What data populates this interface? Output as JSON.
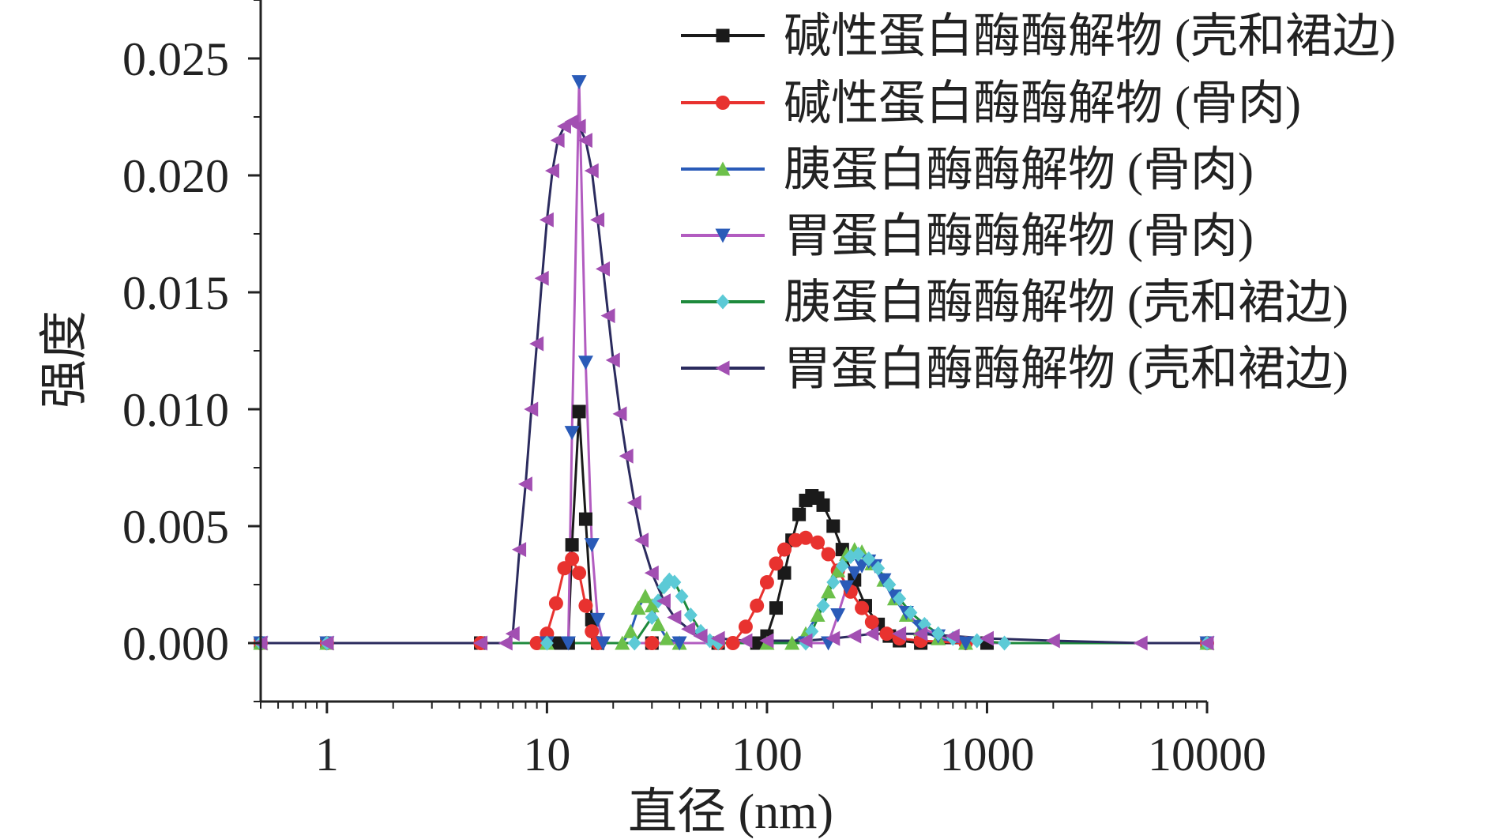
{
  "chart_data": {
    "type": "line",
    "x_scale": "log",
    "xlim": [
      0.5,
      10000
    ],
    "ylim": [
      -0.0025,
      0.0275
    ],
    "x_ticks": [
      1,
      10,
      100,
      1000,
      10000
    ],
    "x_tick_labels": [
      "1",
      "10",
      "100",
      "1000",
      "10000"
    ],
    "y_ticks": [
      0,
      0.005,
      0.01,
      0.015,
      0.02,
      0.025
    ],
    "y_tick_labels": [
      "0.000",
      "0.005",
      "0.010",
      "0.015",
      "0.020",
      "0.025"
    ],
    "xlabel": "直径 (nm)",
    "ylabel": "强度",
    "legend_position": "top-right",
    "grid": false,
    "series": [
      {
        "name": "碱性蛋白酶酶解物 (壳和裙边)",
        "color": "#1a1a1a",
        "marker": "square",
        "points": [
          [
            0.5,
            0
          ],
          [
            1,
            0
          ],
          [
            5,
            0
          ],
          [
            11,
            0
          ],
          [
            12.5,
            0
          ],
          [
            13,
            0.0042
          ],
          [
            14,
            0.0099
          ],
          [
            15,
            0.0053
          ],
          [
            16,
            0.001
          ],
          [
            17,
            0
          ],
          [
            30,
            0
          ],
          [
            60,
            0
          ],
          [
            90,
            0
          ],
          [
            100,
            0.0003
          ],
          [
            110,
            0.0015
          ],
          [
            120,
            0.003
          ],
          [
            130,
            0.0044
          ],
          [
            140,
            0.0055
          ],
          [
            150,
            0.0061
          ],
          [
            160,
            0.0063
          ],
          [
            170,
            0.0062
          ],
          [
            180,
            0.0059
          ],
          [
            200,
            0.005
          ],
          [
            220,
            0.004
          ],
          [
            250,
            0.0027
          ],
          [
            280,
            0.0016
          ],
          [
            320,
            0.0008
          ],
          [
            360,
            0.0003
          ],
          [
            400,
            0.0001
          ],
          [
            500,
            0
          ],
          [
            1000,
            0
          ],
          [
            10000,
            0
          ]
        ]
      },
      {
        "name": "碱性蛋白酶酶解物 (骨肉)",
        "color": "#e8322f",
        "marker": "circle",
        "points": [
          [
            0.5,
            0
          ],
          [
            1,
            0
          ],
          [
            5,
            0
          ],
          [
            9,
            0
          ],
          [
            10,
            0.0004
          ],
          [
            11,
            0.0017
          ],
          [
            12,
            0.0032
          ],
          [
            13,
            0.0036
          ],
          [
            14,
            0.003
          ],
          [
            15,
            0.0016
          ],
          [
            16,
            0.0005
          ],
          [
            17,
            0
          ],
          [
            30,
            0
          ],
          [
            60,
            0
          ],
          [
            70,
            0
          ],
          [
            80,
            0.0007
          ],
          [
            90,
            0.0016
          ],
          [
            100,
            0.0026
          ],
          [
            110,
            0.0034
          ],
          [
            120,
            0.004
          ],
          [
            135,
            0.0044
          ],
          [
            150,
            0.0045
          ],
          [
            170,
            0.0043
          ],
          [
            190,
            0.0038
          ],
          [
            210,
            0.0031
          ],
          [
            240,
            0.0022
          ],
          [
            270,
            0.0015
          ],
          [
            300,
            0.0009
          ],
          [
            350,
            0.0004
          ],
          [
            400,
            0.0002
          ],
          [
            500,
            0.0001
          ],
          [
            800,
            0
          ],
          [
            10000,
            0
          ]
        ]
      },
      {
        "name": "胰蛋白酶酶解物 (骨肉)",
        "color": "#6cc04a",
        "line_color": "#2a5bb8",
        "marker": "triangle-up",
        "points": [
          [
            0.5,
            0
          ],
          [
            1,
            0
          ],
          [
            10,
            0
          ],
          [
            22,
            0
          ],
          [
            24,
            0.0005
          ],
          [
            26,
            0.0015
          ],
          [
            28,
            0.002
          ],
          [
            30,
            0.0016
          ],
          [
            32,
            0.0008
          ],
          [
            35,
            0.0002
          ],
          [
            40,
            0
          ],
          [
            100,
            0
          ],
          [
            130,
            0
          ],
          [
            150,
            0.0004
          ],
          [
            170,
            0.0012
          ],
          [
            190,
            0.0022
          ],
          [
            210,
            0.0031
          ],
          [
            230,
            0.0038
          ],
          [
            250,
            0.004
          ],
          [
            270,
            0.0039
          ],
          [
            300,
            0.0034
          ],
          [
            340,
            0.0027
          ],
          [
            380,
            0.0019
          ],
          [
            430,
            0.0012
          ],
          [
            500,
            0.0006
          ],
          [
            600,
            0.0002
          ],
          [
            800,
            0
          ],
          [
            10000,
            0
          ]
        ]
      },
      {
        "name": "胃蛋白酶酶解物 (骨肉)",
        "color": "#2a5bb8",
        "line_color": "#b25cc0",
        "marker": "triangle-down",
        "points": [
          [
            0.5,
            0
          ],
          [
            1,
            0
          ],
          [
            10,
            0
          ],
          [
            12.5,
            0
          ],
          [
            13,
            0.009
          ],
          [
            14,
            0.024
          ],
          [
            15,
            0.012
          ],
          [
            16,
            0.0042
          ],
          [
            17,
            0.001
          ],
          [
            18,
            0
          ],
          [
            40,
            0
          ],
          [
            150,
            0
          ],
          [
            190,
            0
          ],
          [
            210,
            0.0012
          ],
          [
            230,
            0.0024
          ],
          [
            250,
            0.003
          ],
          [
            270,
            0.0033
          ],
          [
            290,
            0.0035
          ],
          [
            310,
            0.0033
          ],
          [
            340,
            0.0027
          ],
          [
            380,
            0.002
          ],
          [
            430,
            0.0013
          ],
          [
            500,
            0.0007
          ],
          [
            600,
            0.0003
          ],
          [
            800,
            0
          ],
          [
            10000,
            0
          ]
        ]
      },
      {
        "name": "胰蛋白酶酶解物 (壳和裙边)",
        "color": "#5ccad6",
        "line_color": "#1e8a3c",
        "marker": "diamond",
        "points": [
          [
            0.5,
            0
          ],
          [
            1,
            0
          ],
          [
            10,
            0
          ],
          [
            25,
            0
          ],
          [
            30,
            0.0011
          ],
          [
            32,
            0.0018
          ],
          [
            34,
            0.0024
          ],
          [
            36,
            0.0027
          ],
          [
            38,
            0.0026
          ],
          [
            41,
            0.002
          ],
          [
            45,
            0.0012
          ],
          [
            50,
            0.0005
          ],
          [
            55,
            0.0001
          ],
          [
            60,
            0
          ],
          [
            150,
            0
          ],
          [
            160,
            0.0005
          ],
          [
            180,
            0.0016
          ],
          [
            200,
            0.0026
          ],
          [
            220,
            0.0033
          ],
          [
            240,
            0.0037
          ],
          [
            260,
            0.0038
          ],
          [
            290,
            0.0036
          ],
          [
            320,
            0.0032
          ],
          [
            360,
            0.0025
          ],
          [
            400,
            0.0019
          ],
          [
            450,
            0.0013
          ],
          [
            520,
            0.0008
          ],
          [
            600,
            0.0004
          ],
          [
            700,
            0.0002
          ],
          [
            900,
            0.0001
          ],
          [
            1200,
            0
          ],
          [
            10000,
            0
          ]
        ]
      },
      {
        "name": "胃蛋白酶酶解物 (壳和裙边)",
        "color": "#a24fb2",
        "line_color": "#2b2b5e",
        "marker": "triangle-left",
        "points": [
          [
            0.5,
            0
          ],
          [
            1,
            0
          ],
          [
            5,
            0
          ],
          [
            6.5,
            0
          ],
          [
            7,
            0.0004
          ],
          [
            7.5,
            0.004
          ],
          [
            8,
            0.0068
          ],
          [
            8.5,
            0.01
          ],
          [
            9,
            0.0128
          ],
          [
            9.5,
            0.0156
          ],
          [
            10,
            0.0181
          ],
          [
            10.6,
            0.0202
          ],
          [
            11.2,
            0.0215
          ],
          [
            12,
            0.0221
          ],
          [
            13,
            0.0223
          ],
          [
            14,
            0.0221
          ],
          [
            15,
            0.0215
          ],
          [
            16,
            0.0202
          ],
          [
            17,
            0.0181
          ],
          [
            18,
            0.016
          ],
          [
            19,
            0.014
          ],
          [
            20,
            0.0121
          ],
          [
            21.5,
            0.0098
          ],
          [
            23,
            0.008
          ],
          [
            25,
            0.006
          ],
          [
            27,
            0.0044
          ],
          [
            30,
            0.003
          ],
          [
            34,
            0.0018
          ],
          [
            38,
            0.0011
          ],
          [
            44,
            0.0006
          ],
          [
            50,
            0.0003
          ],
          [
            60,
            0.0002
          ],
          [
            80,
            0.0001
          ],
          [
            100,
            0.0001
          ],
          [
            150,
            0.0001
          ],
          [
            200,
            0.0002
          ],
          [
            250,
            0.0003
          ],
          [
            300,
            0.0004
          ],
          [
            400,
            0.0004
          ],
          [
            500,
            0.0004
          ],
          [
            700,
            0.0003
          ],
          [
            1000,
            0.0002
          ],
          [
            2000,
            0.0001
          ],
          [
            5000,
            0
          ],
          [
            10000,
            0
          ]
        ]
      }
    ]
  }
}
